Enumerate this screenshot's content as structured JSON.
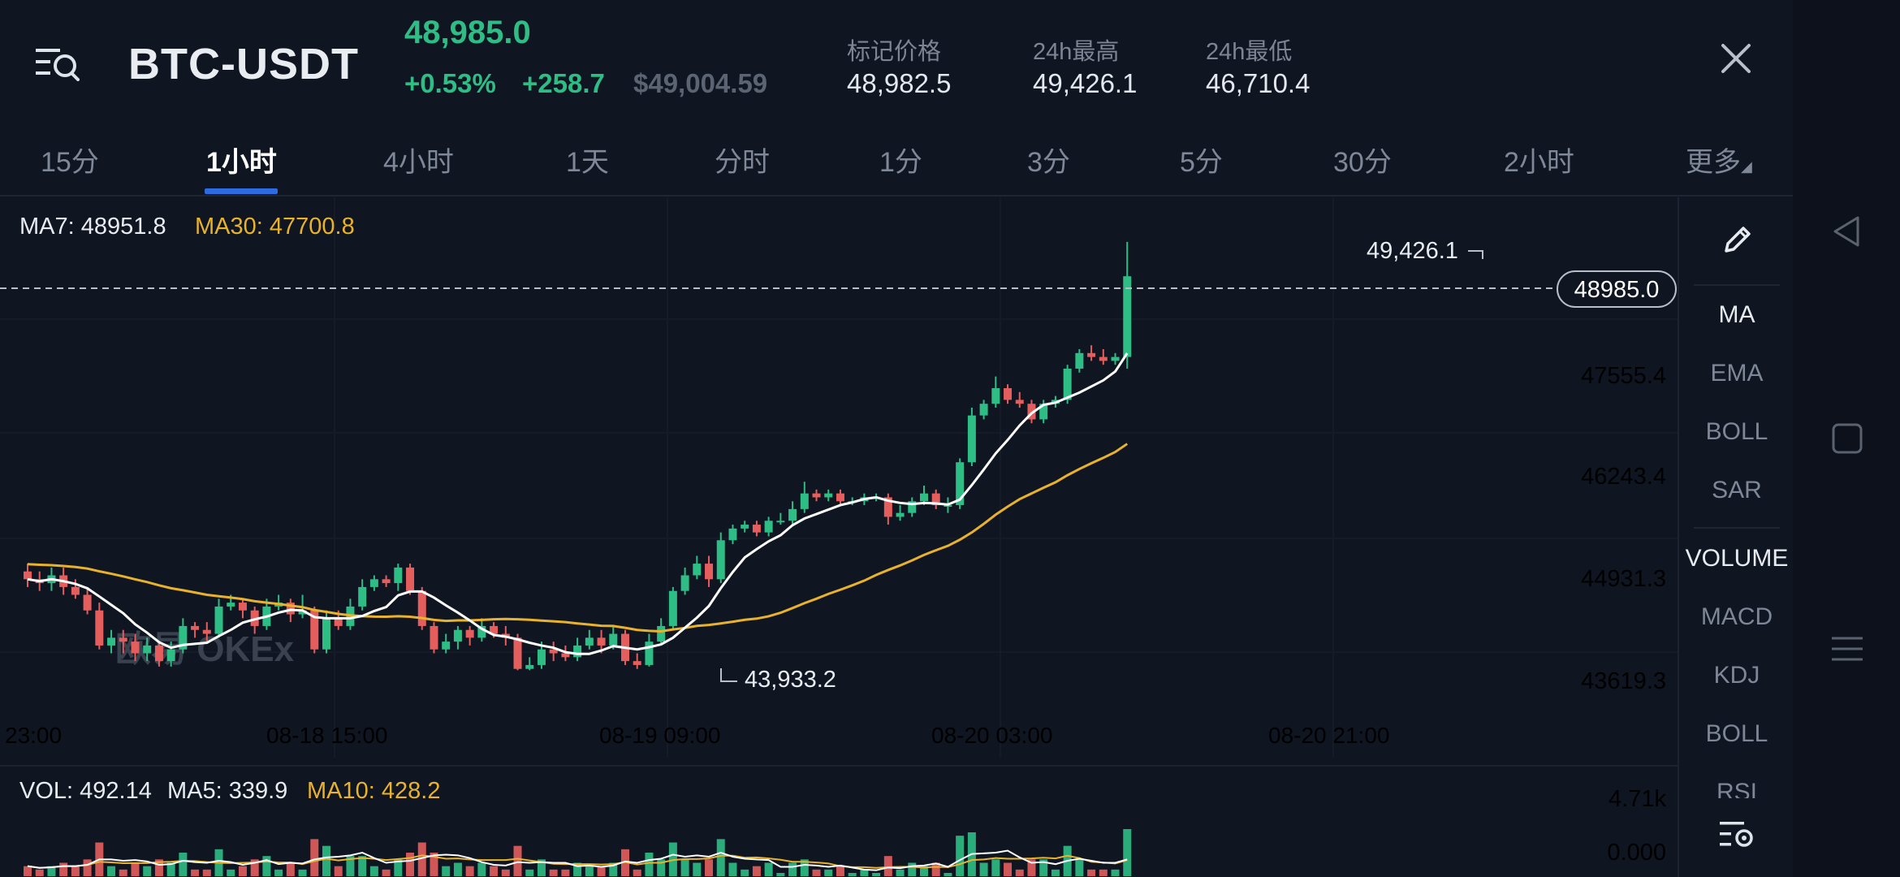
{
  "header": {
    "pair": "BTC-USDT",
    "last_price": "48,985.0",
    "change_pct": "+0.53%",
    "change_abs": "+258.7",
    "usd_price": "$49,004.59",
    "stats": [
      {
        "label": "标记价格",
        "value": "48,982.5"
      },
      {
        "label": "24h最高",
        "value": "49,426.1"
      },
      {
        "label": "24h最低",
        "value": "46,710.4"
      }
    ],
    "up_color": "#2ebd85",
    "down_color": "#e55e5e"
  },
  "tabs": [
    "15分",
    "1小时",
    "4小时",
    "1天",
    "分时",
    "1分",
    "3分",
    "5分",
    "30分",
    "2小时",
    "更多"
  ],
  "active_tab": "1小时",
  "main_chart": {
    "ma7_label": "MA7: 48951.8",
    "ma30_label": "MA30: 47700.8",
    "current_price_tag": "48985.0",
    "high_marker": "49,426.1",
    "low_marker": "43,933.2",
    "watermark": "欧易 OKEx",
    "price_axis": [
      "47555.4",
      "46243.4",
      "44931.3",
      "43619.3"
    ],
    "time_axis": [
      "23:00",
      "08-18 15:00",
      "08-19 09:00",
      "08-20 03:00",
      "08-20 21:00"
    ],
    "ma7_color": "#ffffff",
    "ma30_color": "#e9b22c"
  },
  "volume_chart": {
    "vol_label": "VOL: 492.14",
    "ma5_label": "MA5: 339.9",
    "ma10_label": "MA10: 428.2",
    "axis_top": "4.71k",
    "axis_bottom": "0.000"
  },
  "indicators": {
    "main": [
      "MA",
      "EMA",
      "BOLL",
      "SAR"
    ],
    "sub": [
      "VOLUME",
      "MACD",
      "KDJ",
      "BOLL",
      "RSI"
    ],
    "active_main": "MA",
    "active_sub": "VOLUME"
  },
  "icons": {
    "menu": "menu-search-icon",
    "close": "close-icon",
    "draw": "pencil-icon",
    "settings": "indicator-settings-icon",
    "nav_back": "triangle-back-icon",
    "nav_home": "square-home-icon",
    "nav_menu": "hamburger-menu-icon"
  },
  "chart_data": {
    "type": "candlestick",
    "interval": "1小时",
    "y_axis": [
      43619.3,
      44931.3,
      46243.4,
      47555.4
    ],
    "x_ticks": [
      "23:00",
      "08-18 15:00",
      "08-19 09:00",
      "08-20 03:00",
      "08-20 21:00"
    ],
    "candles": [
      [
        45200,
        45100,
        45300,
        45000
      ],
      [
        45100,
        45050,
        45200,
        44950
      ],
      [
        45050,
        45150,
        45250,
        44950
      ],
      [
        45150,
        45000,
        45250,
        44900
      ],
      [
        45000,
        44900,
        45100,
        44850
      ],
      [
        44900,
        44700,
        45000,
        44650
      ],
      [
        44700,
        44250,
        44800,
        44200
      ],
      [
        44250,
        44350,
        44450,
        44150
      ],
      [
        44350,
        44300,
        44450,
        44150
      ],
      [
        44300,
        44150,
        44400,
        44050
      ],
      [
        44150,
        44250,
        44350,
        44050
      ],
      [
        44250,
        44050,
        44300,
        43980
      ],
      [
        44050,
        44200,
        44300,
        43980
      ],
      [
        44200,
        44500,
        44600,
        44150
      ],
      [
        44500,
        44450,
        44550,
        44350
      ],
      [
        44450,
        44400,
        44550,
        44300
      ],
      [
        44400,
        44750,
        44850,
        44350
      ],
      [
        44750,
        44800,
        44900,
        44700
      ],
      [
        44800,
        44700,
        44850,
        44600
      ],
      [
        44700,
        44500,
        44750,
        44400
      ],
      [
        44500,
        44750,
        44850,
        44450
      ],
      [
        44750,
        44800,
        44900,
        44700
      ],
      [
        44800,
        44650,
        44850,
        44550
      ],
      [
        44650,
        44700,
        44900,
        44600
      ],
      [
        44700,
        44200,
        44750,
        44150
      ],
      [
        44200,
        44600,
        44700,
        44150
      ],
      [
        44600,
        44500,
        44700,
        44450
      ],
      [
        44500,
        44750,
        44850,
        44450
      ],
      [
        44750,
        45000,
        45100,
        44700
      ],
      [
        45000,
        45100,
        45150,
        44950
      ],
      [
        45100,
        45050,
        45150,
        45000
      ],
      [
        45050,
        45250,
        45300,
        44950
      ],
      [
        45250,
        44950,
        45300,
        44900
      ],
      [
        44950,
        44500,
        45000,
        44450
      ],
      [
        44500,
        44200,
        44550,
        44150
      ],
      [
        44200,
        44300,
        44400,
        44150
      ],
      [
        44300,
        44450,
        44500,
        44200
      ],
      [
        44450,
        44350,
        44500,
        44250
      ],
      [
        44350,
        44500,
        44600,
        44300
      ],
      [
        44500,
        44400,
        44550,
        44350
      ],
      [
        44400,
        44350,
        44500,
        44250
      ],
      [
        44350,
        43950,
        44400,
        43933
      ],
      [
        43950,
        44000,
        44100,
        43933
      ],
      [
        44000,
        44200,
        44300,
        43950
      ],
      [
        44200,
        44150,
        44300,
        44050
      ],
      [
        44150,
        44100,
        44250,
        44050
      ],
      [
        44100,
        44250,
        44350,
        44050
      ],
      [
        44250,
        44350,
        44450,
        44200
      ],
      [
        44350,
        44250,
        44450,
        44150
      ],
      [
        44250,
        44400,
        44500,
        44200
      ],
      [
        44400,
        44050,
        44450,
        44000
      ],
      [
        44050,
        44000,
        44150,
        43950
      ],
      [
        44000,
        44300,
        44400,
        43980
      ],
      [
        44300,
        44500,
        44600,
        44250
      ],
      [
        44500,
        44950,
        45000,
        44450
      ],
      [
        44950,
        45150,
        45250,
        44900
      ],
      [
        45150,
        45300,
        45400,
        45100
      ],
      [
        45300,
        45100,
        45400,
        45000
      ],
      [
        45100,
        45600,
        45700,
        45050
      ],
      [
        45600,
        45750,
        45800,
        45550
      ],
      [
        45750,
        45800,
        45850,
        45700
      ],
      [
        45800,
        45700,
        45850,
        45650
      ],
      [
        45700,
        45850,
        45900,
        45650
      ],
      [
        45850,
        45850,
        45950,
        45800
      ],
      [
        45850,
        46000,
        46100,
        45800
      ],
      [
        46000,
        46200,
        46350,
        45950
      ],
      [
        46200,
        46150,
        46250,
        46100
      ],
      [
        46150,
        46200,
        46250,
        46100
      ],
      [
        46200,
        46100,
        46250,
        46050
      ],
      [
        46100,
        46100,
        46150,
        46050
      ],
      [
        46100,
        46150,
        46200,
        46050
      ],
      [
        46150,
        46150,
        46200,
        46100
      ],
      [
        46150,
        45900,
        46200,
        45800
      ],
      [
        45900,
        45950,
        46050,
        45850
      ],
      [
        45950,
        46100,
        46150,
        45900
      ],
      [
        46100,
        46200,
        46300,
        46050
      ],
      [
        46200,
        46050,
        46250,
        46000
      ],
      [
        46050,
        46050,
        46150,
        45950
      ],
      [
        46050,
        46600,
        46650,
        46000
      ],
      [
        46600,
        47200,
        47300,
        46550
      ],
      [
        47200,
        47350,
        47400,
        47150
      ],
      [
        47350,
        47550,
        47700,
        47300
      ],
      [
        47550,
        47400,
        47600,
        47350
      ],
      [
        47400,
        47350,
        47500,
        47300
      ],
      [
        47350,
        47150,
        47400,
        47100
      ],
      [
        47150,
        47350,
        47400,
        47100
      ],
      [
        47350,
        47400,
        47450,
        47300
      ],
      [
        47400,
        47800,
        47850,
        47350
      ],
      [
        47800,
        48000,
        48050,
        47750
      ],
      [
        48000,
        47950,
        48100,
        47900
      ],
      [
        47950,
        47900,
        48050,
        47850
      ],
      [
        47900,
        47950,
        48000,
        47850
      ],
      [
        47950,
        48985,
        49426,
        47800
      ]
    ],
    "ma7_last": 48951.8,
    "ma30_last": 47700.8,
    "last_price": 48985.0,
    "high": 49426.1,
    "low": 43933.2
  }
}
